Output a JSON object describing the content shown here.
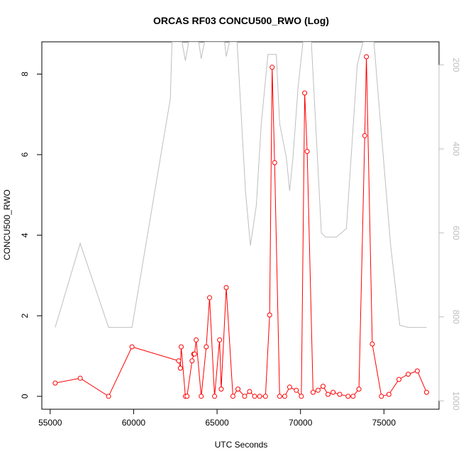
{
  "chart_data": {
    "type": "line",
    "title": "ORCAS RF03 CONCU500_RWO (Log)",
    "xlabel": "UTC Seconds",
    "ylabel": "CONCU500_RWO",
    "xlim": [
      54500,
      78300
    ],
    "ylim": [
      -0.32,
      8.8
    ],
    "y2lim": [
      1020,
      145
    ],
    "y2_reversed": true,
    "x_ticks": [
      55000,
      60000,
      65000,
      70000,
      75000
    ],
    "y_ticks": [
      0,
      2,
      4,
      6,
      8
    ],
    "y2_ticks": [
      200,
      400,
      600,
      800,
      1000
    ],
    "grid": false,
    "colors": {
      "primary": "#ff0000",
      "secondary": "#bebebe"
    },
    "series": [
      {
        "role": "primary",
        "points": [
          [
            55300,
            0.33
          ],
          [
            56800,
            0.45
          ],
          [
            58500,
            0.0
          ],
          [
            59900,
            1.23
          ],
          [
            62700,
            0.88
          ],
          [
            62800,
            0.7
          ],
          [
            62850,
            1.23
          ],
          [
            63100,
            0.0
          ],
          [
            63200,
            0.0
          ],
          [
            63500,
            0.88
          ],
          [
            63600,
            1.05
          ],
          [
            63650,
            1.05
          ],
          [
            63750,
            1.4
          ],
          [
            64050,
            0.0
          ],
          [
            64350,
            1.23
          ],
          [
            64550,
            2.45
          ],
          [
            64850,
            0.0
          ],
          [
            65150,
            1.4
          ],
          [
            65250,
            0.18
          ],
          [
            65550,
            2.7
          ],
          [
            65950,
            0.0
          ],
          [
            66250,
            0.18
          ],
          [
            66650,
            0.0
          ],
          [
            66950,
            0.12
          ],
          [
            67250,
            0.0
          ],
          [
            67550,
            0.0
          ],
          [
            67900,
            0.0
          ],
          [
            68150,
            2.02
          ],
          [
            68300,
            8.17
          ],
          [
            68450,
            5.8
          ],
          [
            68750,
            0.0
          ],
          [
            69050,
            0.0
          ],
          [
            69350,
            0.23
          ],
          [
            69750,
            0.15
          ],
          [
            70050,
            0.0
          ],
          [
            70250,
            7.53
          ],
          [
            70400,
            6.08
          ],
          [
            70750,
            0.1
          ],
          [
            71050,
            0.15
          ],
          [
            71350,
            0.25
          ],
          [
            71650,
            0.05
          ],
          [
            71950,
            0.1
          ],
          [
            72350,
            0.05
          ],
          [
            72850,
            0.0
          ],
          [
            73150,
            0.0
          ],
          [
            73500,
            0.18
          ],
          [
            73850,
            6.47
          ],
          [
            73950,
            8.43
          ],
          [
            74300,
            1.3
          ],
          [
            74850,
            0.0
          ],
          [
            75300,
            0.05
          ],
          [
            75900,
            0.42
          ],
          [
            76450,
            0.55
          ],
          [
            77000,
            0.63
          ],
          [
            77550,
            0.1
          ]
        ]
      },
      {
        "role": "secondary",
        "points": [
          [
            55300,
            825
          ],
          [
            56800,
            625
          ],
          [
            58500,
            825
          ],
          [
            59900,
            825
          ],
          [
            62200,
            280
          ],
          [
            62300,
            145
          ],
          [
            62900,
            145
          ],
          [
            63100,
            190
          ],
          [
            63300,
            145
          ],
          [
            63900,
            145
          ],
          [
            64050,
            185
          ],
          [
            64250,
            145
          ],
          [
            65450,
            145
          ],
          [
            65550,
            180
          ],
          [
            65750,
            145
          ],
          [
            66200,
            145
          ],
          [
            66700,
            500
          ],
          [
            67000,
            630
          ],
          [
            67350,
            535
          ],
          [
            67650,
            340
          ],
          [
            68050,
            175
          ],
          [
            68550,
            175
          ],
          [
            68750,
            340
          ],
          [
            69150,
            420
          ],
          [
            69350,
            500
          ],
          [
            69550,
            420
          ],
          [
            69850,
            255
          ],
          [
            70150,
            145
          ],
          [
            70650,
            145
          ],
          [
            71250,
            600
          ],
          [
            71500,
            610
          ],
          [
            72150,
            610
          ],
          [
            72750,
            590
          ],
          [
            73400,
            200
          ],
          [
            73750,
            145
          ],
          [
            74400,
            145
          ],
          [
            74800,
            340
          ],
          [
            75400,
            630
          ],
          [
            75950,
            820
          ],
          [
            76450,
            825
          ],
          [
            77550,
            825
          ]
        ]
      }
    ]
  }
}
